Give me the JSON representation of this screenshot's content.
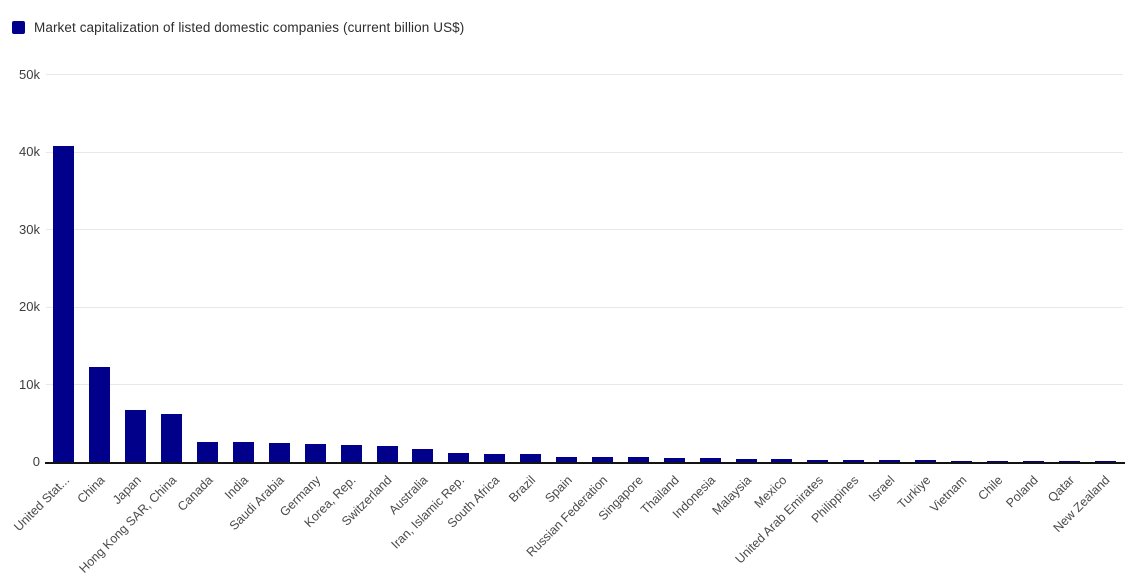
{
  "legend": {
    "label": "Market capitalization of listed domestic companies (current billion US$)",
    "swatch_color": "#00008b"
  },
  "chart_data": {
    "type": "bar",
    "title": "Market capitalization of listed domestic companies (current billion US$)",
    "xlabel": "",
    "ylabel": "",
    "unit": "current billion US$",
    "categories": [
      "United Stat...",
      "China",
      "Japan",
      "Hong Kong SAR, China",
      "Canada",
      "India",
      "Saudi Arabia",
      "Germany",
      "Korea, Rep.",
      "Switzerland",
      "Australia",
      "Iran, Islamic Rep.",
      "South Africa",
      "Brazil",
      "Spain",
      "Russian Federation",
      "Singapore",
      "Thailand",
      "Indonesia",
      "Malaysia",
      "Mexico",
      "United Arab Emirates",
      "Philippines",
      "Israel",
      "Turkiye",
      "Vietnam",
      "Chile",
      "Poland",
      "Qatar",
      "New Zealand"
    ],
    "values": [
      40719.7,
      12214.5,
      6718.2,
      6130.4,
      2641.5,
      2595.5,
      2429.1,
      2284.1,
      2176.2,
      2001.8,
      1720.6,
      1203.5,
      1051.1,
      988.4,
      704.6,
      694.7,
      652.6,
      543.1,
      496.1,
      436.6,
      399.7,
      308.0,
      271.7,
      237.0,
      234.5,
      186.0,
      182.1,
      177.7,
      164.8,
      129.6
    ],
    "ylim": [
      0,
      50000
    ],
    "yticks": [
      0,
      10000,
      20000,
      30000,
      40000,
      50000
    ],
    "ytick_labels": [
      "0",
      "10k",
      "20k",
      "30k",
      "40k",
      "50k"
    ],
    "grid": true,
    "legend_position": "top-left",
    "bar_color": "#00008b",
    "x_labels_rotation_deg": -45
  },
  "colors": {
    "bar": "#00008b",
    "gridline": "#e8e8e8",
    "axis": "#141414",
    "y_tick_label": "#3d3d3d",
    "x_tick_label": "#4a4a4a",
    "background": "#ffffff"
  }
}
